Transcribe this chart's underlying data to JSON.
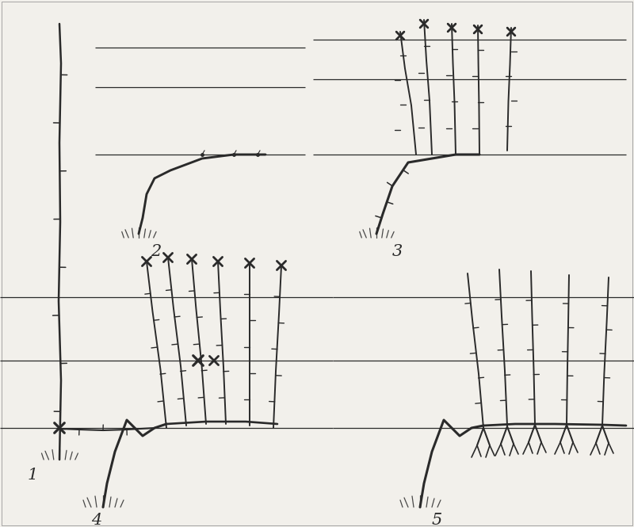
{
  "bg_color": "#f2f0eb",
  "line_color": "#2a2a2a",
  "wire_color": "#2a2a2a",
  "fig_width": 8.0,
  "fig_height": 6.65,
  "dpi": 100,
  "wire_lw": 0.9,
  "vine_lw": 1.8,
  "trunk_lw": 2.2,
  "thin_lw": 1.2,
  "cut_lw": 2.0
}
